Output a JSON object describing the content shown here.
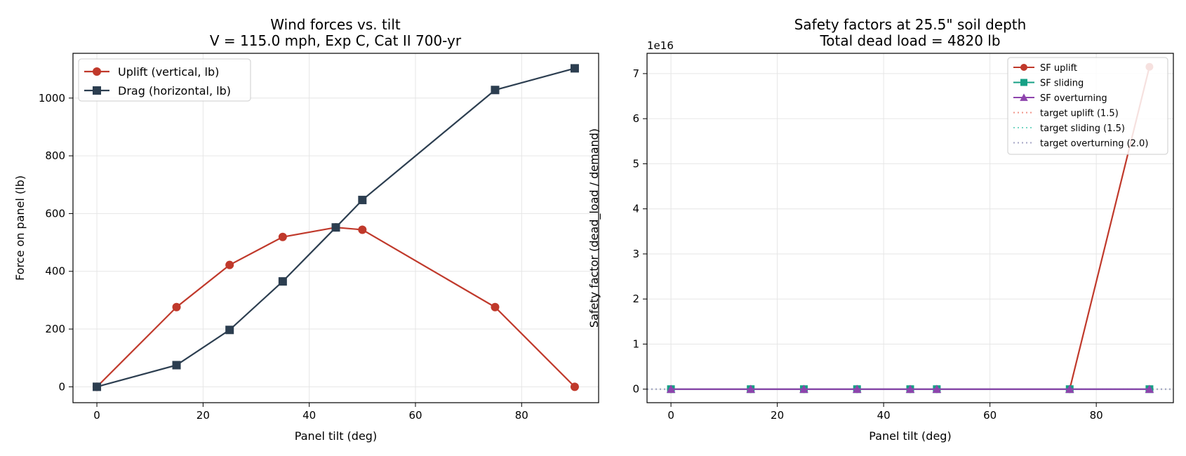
{
  "chart_data": [
    {
      "type": "line",
      "title": "Wind forces vs. tilt",
      "subtitle": "V = 115.0 mph, Exp C, Cat II 700-yr",
      "xlabel": "Panel tilt (deg)",
      "ylabel": "Force on panel (lb)",
      "x": [
        0,
        15,
        25,
        35,
        45,
        50,
        75,
        90
      ],
      "xlim": [
        -4.5,
        94.5
      ],
      "ylim": [
        -55,
        1155
      ],
      "xticks": [
        0,
        20,
        40,
        60,
        80
      ],
      "yticks": [
        0,
        200,
        400,
        600,
        800,
        1000
      ],
      "grid": true,
      "legend_position": "top-left",
      "series": [
        {
          "name": "Uplift (vertical, lb)",
          "color": "#c0392b",
          "marker": "circle",
          "values": [
            0,
            276,
            422,
            519,
            552,
            544,
            276,
            0
          ]
        },
        {
          "name": "Drag (horizontal, lb)",
          "color": "#2c3e50",
          "marker": "square",
          "values": [
            0,
            75,
            197,
            365,
            552,
            647,
            1028,
            1103
          ]
        }
      ]
    },
    {
      "type": "line",
      "title": "Safety factors at 25.5\" soil depth",
      "subtitle": "Total dead load = 4820 lb",
      "xlabel": "Panel tilt (deg)",
      "ylabel": "Safety factor (dead_load / demand)",
      "offset_label": "1e16",
      "x": [
        0,
        15,
        25,
        35,
        45,
        50,
        75,
        90
      ],
      "xlim": [
        -4.5,
        94.5
      ],
      "ylim": [
        -0.3,
        7.45
      ],
      "xticks": [
        0,
        20,
        40,
        60,
        80
      ],
      "yticks": [
        0,
        1,
        2,
        3,
        4,
        5,
        6,
        7
      ],
      "grid": true,
      "legend_position": "top-right",
      "series": [
        {
          "name": "SF uplift",
          "color": "#c0392b",
          "marker": "circle",
          "style": "solid",
          "values": [
            0,
            0,
            0,
            0,
            0,
            0,
            0,
            7.15
          ]
        },
        {
          "name": "SF sliding",
          "color": "#16a085",
          "marker": "square",
          "style": "solid",
          "values": [
            0,
            0,
            0,
            0,
            0,
            0,
            0,
            0
          ]
        },
        {
          "name": "SF overturning",
          "color": "#8e44ad",
          "marker": "triangle",
          "style": "solid",
          "values": [
            0,
            0,
            0,
            0,
            0,
            0,
            0,
            0
          ]
        }
      ],
      "reference_lines": [
        {
          "name": "target uplift (1.5)",
          "color": "#f1948a",
          "style": "dotted",
          "y": 0
        },
        {
          "name": "target sliding (1.5)",
          "color": "#76d7c4",
          "style": "dotted",
          "y": 0
        },
        {
          "name": "target overturning (2.0)",
          "color": "#a5a6c6",
          "style": "dotted",
          "y": 0
        }
      ]
    }
  ]
}
